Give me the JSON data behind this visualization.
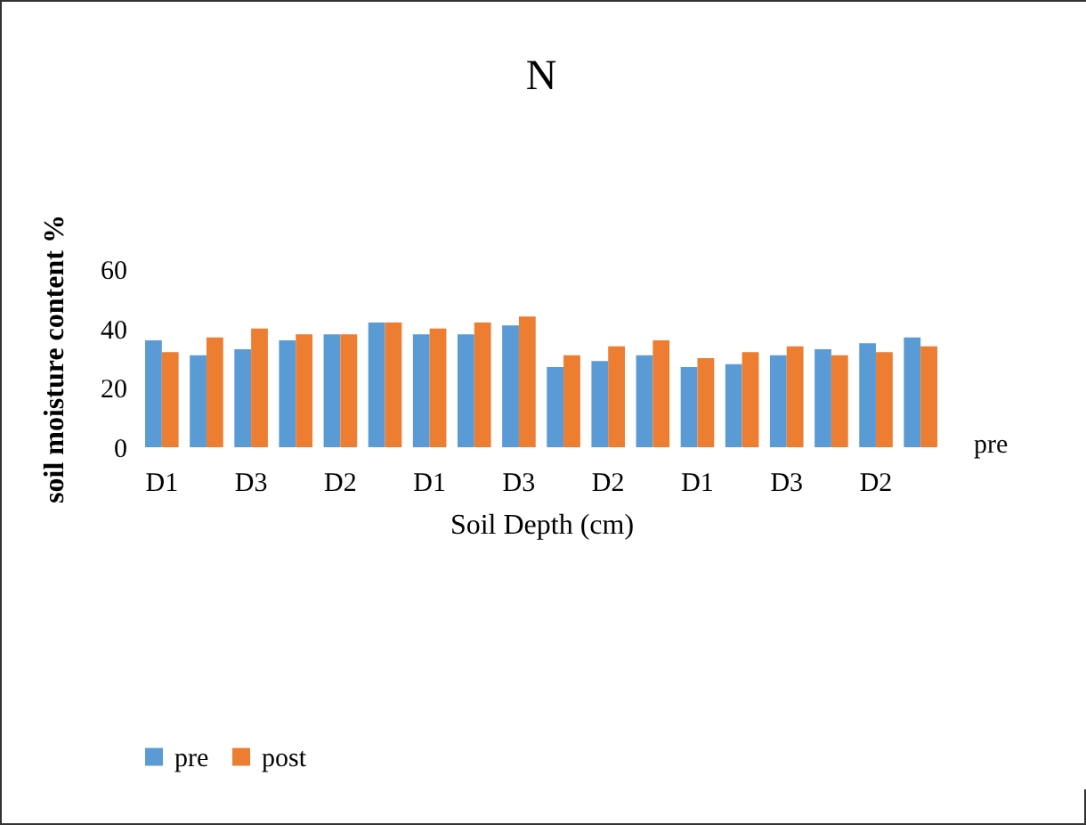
{
  "chart_data": {
    "type": "bar",
    "title": "N",
    "xlabel": "Soil Depth (cm)",
    "ylabel": "soil moisture content %",
    "categories": [
      "D1",
      null,
      "D3",
      null,
      "D2",
      null,
      "D1",
      null,
      "D3",
      null,
      "D2",
      null,
      "D1",
      null,
      "D3",
      null,
      "D2",
      null
    ],
    "series": [
      {
        "name": "pre",
        "color": "#5b9bd5",
        "values": [
          36,
          31,
          33,
          36,
          38,
          42,
          38,
          38,
          41,
          27,
          29,
          31,
          27,
          28,
          31,
          33,
          35,
          37
        ]
      },
      {
        "name": "post",
        "color": "#ed7d31",
        "values": [
          32,
          37,
          40,
          38,
          38,
          42,
          40,
          42,
          44,
          31,
          34,
          36,
          30,
          32,
          34,
          31,
          32,
          34
        ]
      }
    ],
    "ylim": [
      0,
      60
    ],
    "yticks": [
      0,
      20,
      40,
      60
    ],
    "legend": "bottom",
    "annotations": [
      "pre"
    ]
  }
}
